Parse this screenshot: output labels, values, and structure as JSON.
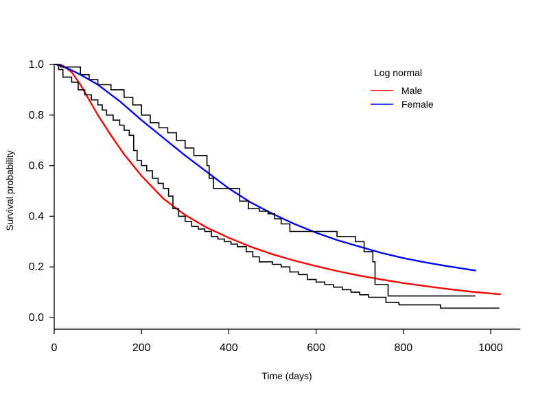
{
  "chart_data": {
    "type": "line",
    "title": "",
    "xlabel": "Time (days)",
    "ylabel": "Survival probability",
    "xlim": [
      0,
      1050
    ],
    "ylim": [
      0,
      1.0
    ],
    "xticks": [
      "0",
      "200",
      "400",
      "600",
      "800",
      "1000"
    ],
    "yticks": [
      "0.0",
      "0.2",
      "0.4",
      "0.6",
      "0.8",
      "1.0"
    ],
    "grid": false,
    "legend": {
      "title": "Log normal",
      "placement": "top-right",
      "entries": [
        {
          "label": "Male",
          "color": "#ff0000"
        },
        {
          "label": "Female",
          "color": "#0000ff"
        }
      ]
    },
    "series": [
      {
        "name": "Male",
        "kind": "fitted",
        "color": "#ff0000",
        "x": [
          5,
          20,
          40,
          60,
          80,
          100,
          130,
          160,
          200,
          250,
          300,
          350,
          400,
          450,
          500,
          550,
          600,
          650,
          700,
          750,
          800,
          850,
          900,
          950,
          1000,
          1022
        ],
        "y": [
          1.0,
          0.995,
          0.97,
          0.92,
          0.86,
          0.8,
          0.72,
          0.645,
          0.56,
          0.47,
          0.405,
          0.355,
          0.315,
          0.28,
          0.25,
          0.225,
          0.203,
          0.183,
          0.165,
          0.15,
          0.136,
          0.124,
          0.113,
          0.103,
          0.095,
          0.092
        ]
      },
      {
        "name": "Female",
        "kind": "fitted",
        "color": "#0000ff",
        "x": [
          5,
          30,
          60,
          100,
          150,
          200,
          250,
          300,
          350,
          400,
          450,
          500,
          550,
          600,
          650,
          700,
          750,
          800,
          850,
          900,
          965
        ],
        "y": [
          1.0,
          0.985,
          0.96,
          0.92,
          0.855,
          0.78,
          0.71,
          0.64,
          0.575,
          0.51,
          0.455,
          0.41,
          0.37,
          0.335,
          0.305,
          0.28,
          0.255,
          0.235,
          0.218,
          0.203,
          0.186
        ]
      },
      {
        "name": "",
        "kind": "kaplan-meier",
        "color": "#000000",
        "x": [
          0,
          10,
          20,
          40,
          55,
          70,
          85,
          100,
          110,
          120,
          135,
          150,
          160,
          172,
          182,
          190,
          200,
          212,
          225,
          238,
          250,
          262,
          272,
          285,
          300,
          315,
          330,
          345,
          360,
          375,
          390,
          405,
          420,
          440,
          455,
          470,
          500,
          520,
          540,
          560,
          580,
          600,
          620,
          640,
          660,
          680,
          700,
          720,
          760,
          790,
          885,
          1020
        ],
        "y": [
          1.0,
          0.98,
          0.95,
          0.93,
          0.9,
          0.88,
          0.86,
          0.84,
          0.82,
          0.8,
          0.78,
          0.76,
          0.74,
          0.72,
          0.66,
          0.62,
          0.6,
          0.58,
          0.55,
          0.53,
          0.51,
          0.48,
          0.43,
          0.4,
          0.38,
          0.36,
          0.35,
          0.34,
          0.32,
          0.31,
          0.3,
          0.29,
          0.28,
          0.26,
          0.24,
          0.22,
          0.21,
          0.2,
          0.18,
          0.17,
          0.15,
          0.14,
          0.13,
          0.12,
          0.11,
          0.1,
          0.09,
          0.08,
          0.06,
          0.05,
          0.037,
          0.037
        ]
      },
      {
        "name": "",
        "kind": "kaplan-meier",
        "color": "#000000",
        "x": [
          0,
          15,
          40,
          60,
          80,
          100,
          130,
          160,
          180,
          200,
          220,
          240,
          260,
          280,
          300,
          320,
          350,
          355,
          365,
          400,
          425,
          445,
          470,
          490,
          505,
          520,
          540,
          600,
          640,
          648,
          690,
          710,
          730,
          735,
          765,
          965
        ],
        "y": [
          1.0,
          0.99,
          0.99,
          0.96,
          0.94,
          0.92,
          0.9,
          0.87,
          0.84,
          0.8,
          0.77,
          0.75,
          0.73,
          0.7,
          0.67,
          0.64,
          0.6,
          0.55,
          0.51,
          0.51,
          0.46,
          0.43,
          0.42,
          0.41,
          0.39,
          0.37,
          0.34,
          0.34,
          0.34,
          0.32,
          0.3,
          0.26,
          0.22,
          0.13,
          0.085,
          0.085
        ]
      }
    ]
  }
}
